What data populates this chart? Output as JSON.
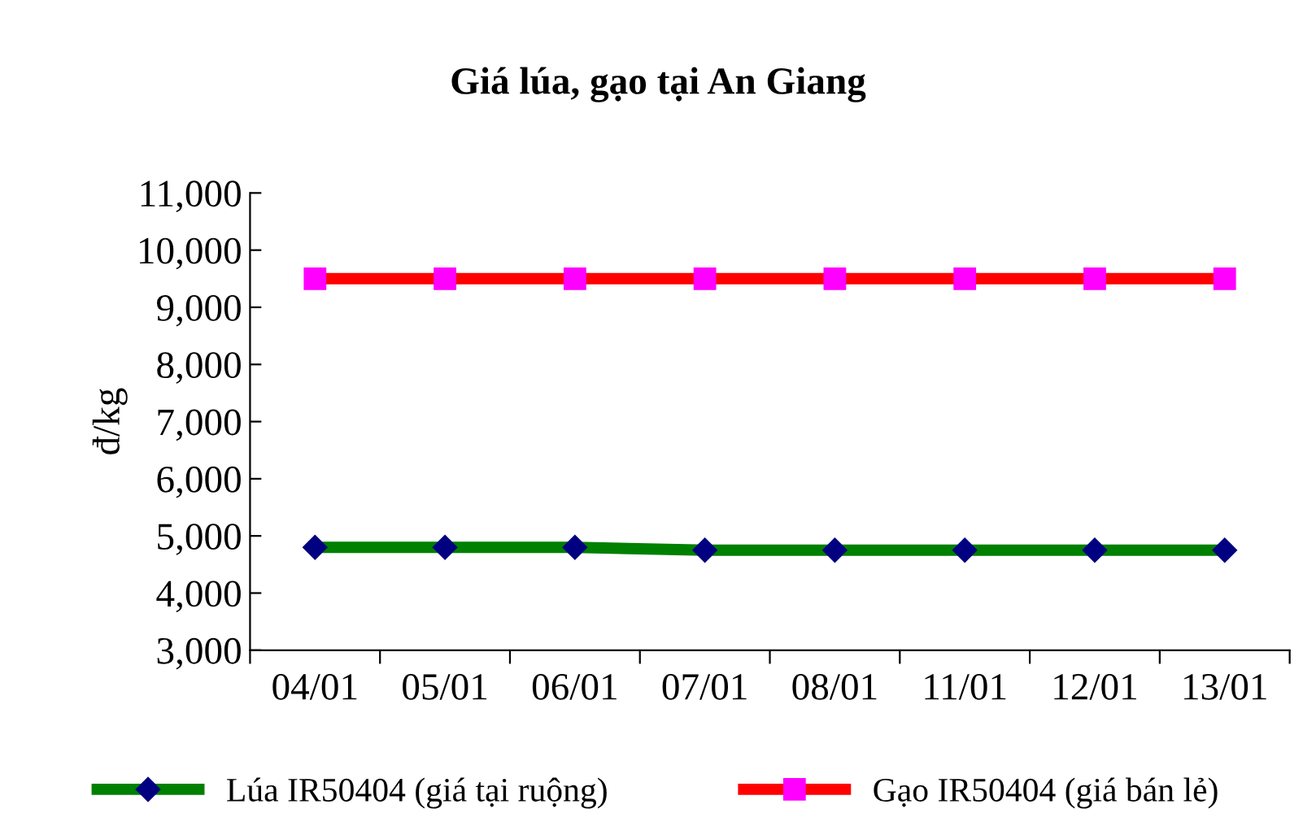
{
  "chart_data": {
    "type": "line",
    "title": "Giá lúa, gạo tại An Giang",
    "ylabel": "đ/kg",
    "categories": [
      "04/01",
      "05/01",
      "06/01",
      "07/01",
      "08/01",
      "11/01",
      "12/01",
      "13/01"
    ],
    "series": [
      {
        "name": "Lúa IR50404 (giá tại ruộng)",
        "color": "#008000",
        "colors": [
          "#000080",
          "#000080",
          "#000080",
          "#000080",
          "#000080",
          "#000080",
          "#000080",
          "#000080"
        ],
        "marker": "diamond",
        "values": [
          4800,
          4800,
          4800,
          4750,
          4750,
          4750,
          4750,
          4750
        ]
      },
      {
        "name": "Gạo IR50404 (giá bán lẻ)",
        "color": "#ff0000",
        "colors": [
          "#ff00ff",
          "#ff00ff",
          "#ff00ff",
          "#ff00ff",
          "#ff00ff",
          "#ff00ff",
          "#ff00ff",
          "#ff00ff"
        ],
        "marker": "square",
        "values": [
          9500,
          9500,
          9500,
          9500,
          9500,
          9500,
          9500,
          9500
        ]
      }
    ],
    "ylim": [
      3000,
      11000
    ],
    "yticks": [
      {
        "value": 3000,
        "label": "3,000"
      },
      {
        "value": 4000,
        "label": "4,000"
      },
      {
        "value": 5000,
        "label": "5,000"
      },
      {
        "value": 6000,
        "label": "6,000"
      },
      {
        "value": 7000,
        "label": "7,000"
      },
      {
        "value": 8000,
        "label": "8,000"
      },
      {
        "value": 9000,
        "label": "9,000"
      },
      {
        "value": 10000,
        "label": "10,000"
      },
      {
        "value": 11000,
        "label": "11,000"
      }
    ],
    "grid": false,
    "legend": "bottom",
    "line_style": "solid"
  }
}
